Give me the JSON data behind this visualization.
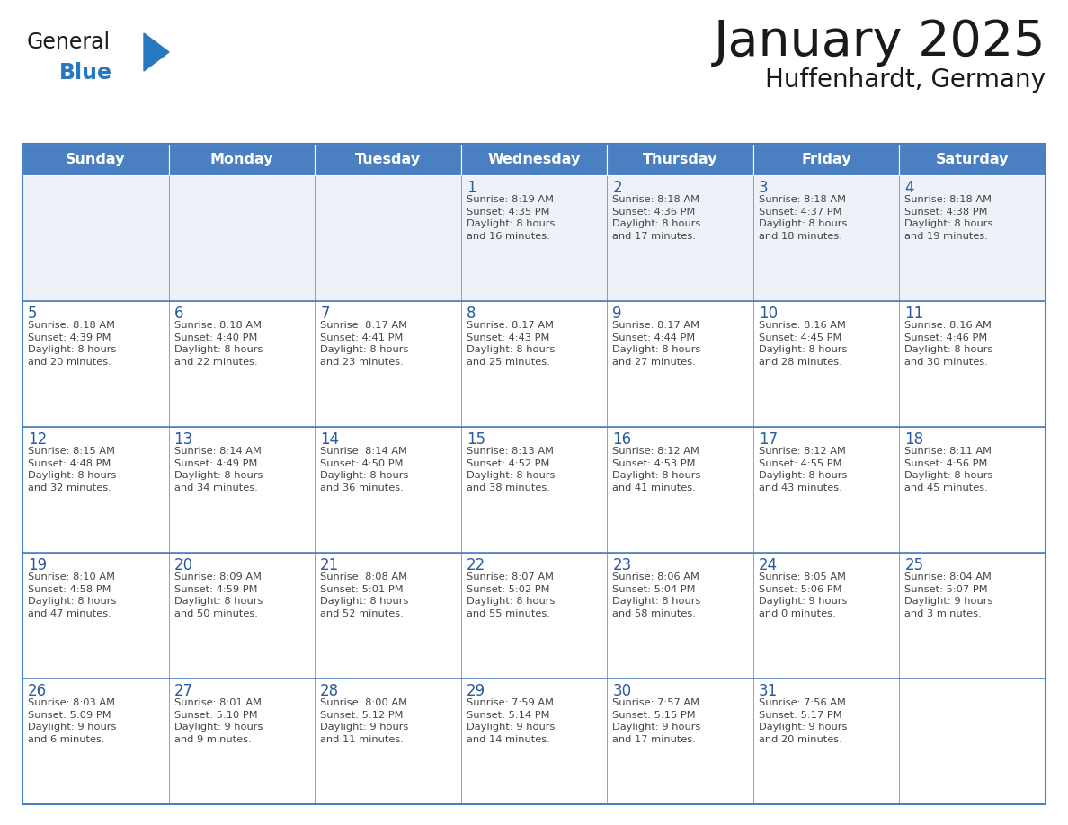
{
  "title": "January 2025",
  "subtitle": "Huffenhardt, Germany",
  "header_bg": "#4a7fc1",
  "header_text_color": "#ffffff",
  "cell_bg": "#ffffff",
  "cell_row1_bg": "#eef2f8",
  "border_color": "#4a7fc1",
  "row_divider_color": "#4a7fc1",
  "day_headers": [
    "Sunday",
    "Monday",
    "Tuesday",
    "Wednesday",
    "Thursday",
    "Friday",
    "Saturday"
  ],
  "title_color": "#1a1a1a",
  "subtitle_color": "#1a1a1a",
  "day_number_color": "#2a5a9e",
  "cell_text_color": "#444444",
  "logo_general_color": "#1a1a1a",
  "logo_blue_color": "#2878c0",
  "logo_triangle_color": "#2878c0",
  "weeks": [
    [
      {
        "day": null,
        "data": null
      },
      {
        "day": null,
        "data": null
      },
      {
        "day": null,
        "data": null
      },
      {
        "day": 1,
        "data": "Sunrise: 8:19 AM\nSunset: 4:35 PM\nDaylight: 8 hours\nand 16 minutes."
      },
      {
        "day": 2,
        "data": "Sunrise: 8:18 AM\nSunset: 4:36 PM\nDaylight: 8 hours\nand 17 minutes."
      },
      {
        "day": 3,
        "data": "Sunrise: 8:18 AM\nSunset: 4:37 PM\nDaylight: 8 hours\nand 18 minutes."
      },
      {
        "day": 4,
        "data": "Sunrise: 8:18 AM\nSunset: 4:38 PM\nDaylight: 8 hours\nand 19 minutes."
      }
    ],
    [
      {
        "day": 5,
        "data": "Sunrise: 8:18 AM\nSunset: 4:39 PM\nDaylight: 8 hours\nand 20 minutes."
      },
      {
        "day": 6,
        "data": "Sunrise: 8:18 AM\nSunset: 4:40 PM\nDaylight: 8 hours\nand 22 minutes."
      },
      {
        "day": 7,
        "data": "Sunrise: 8:17 AM\nSunset: 4:41 PM\nDaylight: 8 hours\nand 23 minutes."
      },
      {
        "day": 8,
        "data": "Sunrise: 8:17 AM\nSunset: 4:43 PM\nDaylight: 8 hours\nand 25 minutes."
      },
      {
        "day": 9,
        "data": "Sunrise: 8:17 AM\nSunset: 4:44 PM\nDaylight: 8 hours\nand 27 minutes."
      },
      {
        "day": 10,
        "data": "Sunrise: 8:16 AM\nSunset: 4:45 PM\nDaylight: 8 hours\nand 28 minutes."
      },
      {
        "day": 11,
        "data": "Sunrise: 8:16 AM\nSunset: 4:46 PM\nDaylight: 8 hours\nand 30 minutes."
      }
    ],
    [
      {
        "day": 12,
        "data": "Sunrise: 8:15 AM\nSunset: 4:48 PM\nDaylight: 8 hours\nand 32 minutes."
      },
      {
        "day": 13,
        "data": "Sunrise: 8:14 AM\nSunset: 4:49 PM\nDaylight: 8 hours\nand 34 minutes."
      },
      {
        "day": 14,
        "data": "Sunrise: 8:14 AM\nSunset: 4:50 PM\nDaylight: 8 hours\nand 36 minutes."
      },
      {
        "day": 15,
        "data": "Sunrise: 8:13 AM\nSunset: 4:52 PM\nDaylight: 8 hours\nand 38 minutes."
      },
      {
        "day": 16,
        "data": "Sunrise: 8:12 AM\nSunset: 4:53 PM\nDaylight: 8 hours\nand 41 minutes."
      },
      {
        "day": 17,
        "data": "Sunrise: 8:12 AM\nSunset: 4:55 PM\nDaylight: 8 hours\nand 43 minutes."
      },
      {
        "day": 18,
        "data": "Sunrise: 8:11 AM\nSunset: 4:56 PM\nDaylight: 8 hours\nand 45 minutes."
      }
    ],
    [
      {
        "day": 19,
        "data": "Sunrise: 8:10 AM\nSunset: 4:58 PM\nDaylight: 8 hours\nand 47 minutes."
      },
      {
        "day": 20,
        "data": "Sunrise: 8:09 AM\nSunset: 4:59 PM\nDaylight: 8 hours\nand 50 minutes."
      },
      {
        "day": 21,
        "data": "Sunrise: 8:08 AM\nSunset: 5:01 PM\nDaylight: 8 hours\nand 52 minutes."
      },
      {
        "day": 22,
        "data": "Sunrise: 8:07 AM\nSunset: 5:02 PM\nDaylight: 8 hours\nand 55 minutes."
      },
      {
        "day": 23,
        "data": "Sunrise: 8:06 AM\nSunset: 5:04 PM\nDaylight: 8 hours\nand 58 minutes."
      },
      {
        "day": 24,
        "data": "Sunrise: 8:05 AM\nSunset: 5:06 PM\nDaylight: 9 hours\nand 0 minutes."
      },
      {
        "day": 25,
        "data": "Sunrise: 8:04 AM\nSunset: 5:07 PM\nDaylight: 9 hours\nand 3 minutes."
      }
    ],
    [
      {
        "day": 26,
        "data": "Sunrise: 8:03 AM\nSunset: 5:09 PM\nDaylight: 9 hours\nand 6 minutes."
      },
      {
        "day": 27,
        "data": "Sunrise: 8:01 AM\nSunset: 5:10 PM\nDaylight: 9 hours\nand 9 minutes."
      },
      {
        "day": 28,
        "data": "Sunrise: 8:00 AM\nSunset: 5:12 PM\nDaylight: 9 hours\nand 11 minutes."
      },
      {
        "day": 29,
        "data": "Sunrise: 7:59 AM\nSunset: 5:14 PM\nDaylight: 9 hours\nand 14 minutes."
      },
      {
        "day": 30,
        "data": "Sunrise: 7:57 AM\nSunset: 5:15 PM\nDaylight: 9 hours\nand 17 minutes."
      },
      {
        "day": 31,
        "data": "Sunrise: 7:56 AM\nSunset: 5:17 PM\nDaylight: 9 hours\nand 20 minutes."
      },
      {
        "day": null,
        "data": null
      }
    ]
  ]
}
